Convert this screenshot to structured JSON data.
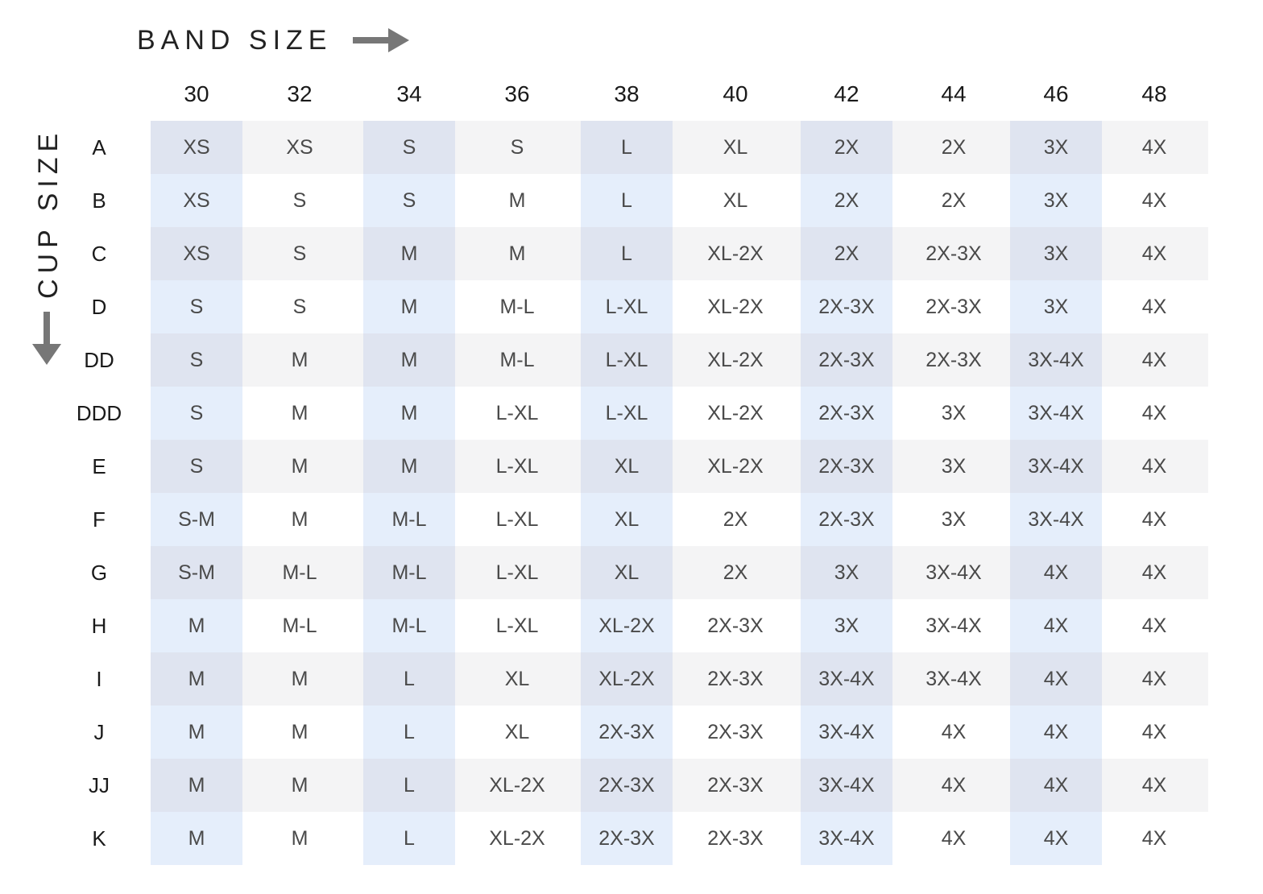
{
  "axis": {
    "band_label": "BAND SIZE",
    "cup_label": "CUP SIZE"
  },
  "colors": {
    "highlight_column_light": "#e8f0fb",
    "highlight_column_dark": "#dde3ee",
    "row_stripe": "#f4f4f5",
    "arrow": "#777777"
  },
  "icons": [
    "arrow-right-icon",
    "arrow-down-icon"
  ],
  "band_sizes": [
    "30",
    "32",
    "34",
    "36",
    "38",
    "40",
    "42",
    "44",
    "46",
    "48"
  ],
  "highlighted_band_columns": [
    0,
    2,
    4,
    6,
    8
  ],
  "cup_sizes": [
    "A",
    "B",
    "C",
    "D",
    "DD",
    "DDD",
    "E",
    "F",
    "G",
    "H",
    "I",
    "J",
    "JJ",
    "K"
  ],
  "rows": [
    [
      "XS",
      "XS",
      "S",
      "S",
      "L",
      "XL",
      "2X",
      "2X",
      "3X",
      "4X"
    ],
    [
      "XS",
      "S",
      "S",
      "M",
      "L",
      "XL",
      "2X",
      "2X",
      "3X",
      "4X"
    ],
    [
      "XS",
      "S",
      "M",
      "M",
      "L",
      "XL-2X",
      "2X",
      "2X-3X",
      "3X",
      "4X"
    ],
    [
      "S",
      "S",
      "M",
      "M-L",
      "L-XL",
      "XL-2X",
      "2X-3X",
      "2X-3X",
      "3X",
      "4X"
    ],
    [
      "S",
      "M",
      "M",
      "M-L",
      "L-XL",
      "XL-2X",
      "2X-3X",
      "2X-3X",
      "3X-4X",
      "4X"
    ],
    [
      "S",
      "M",
      "M",
      "L-XL",
      "L-XL",
      "XL-2X",
      "2X-3X",
      "3X",
      "3X-4X",
      "4X"
    ],
    [
      "S",
      "M",
      "M",
      "L-XL",
      "XL",
      "XL-2X",
      "2X-3X",
      "3X",
      "3X-4X",
      "4X"
    ],
    [
      "S-M",
      "M",
      "M-L",
      "L-XL",
      "XL",
      "2X",
      "2X-3X",
      "3X",
      "3X-4X",
      "4X"
    ],
    [
      "S-M",
      "M-L",
      "M-L",
      "L-XL",
      "XL",
      "2X",
      "3X",
      "3X-4X",
      "4X",
      "4X"
    ],
    [
      "M",
      "M-L",
      "M-L",
      "L-XL",
      "XL-2X",
      "2X-3X",
      "3X",
      "3X-4X",
      "4X",
      "4X"
    ],
    [
      "M",
      "M",
      "L",
      "XL",
      "XL-2X",
      "2X-3X",
      "3X-4X",
      "3X-4X",
      "4X",
      "4X"
    ],
    [
      "M",
      "M",
      "L",
      "XL",
      "2X-3X",
      "2X-3X",
      "3X-4X",
      "4X",
      "4X",
      "4X"
    ],
    [
      "M",
      "M",
      "L",
      "XL-2X",
      "2X-3X",
      "2X-3X",
      "3X-4X",
      "4X",
      "4X",
      "4X"
    ],
    [
      "M",
      "M",
      "L",
      "XL-2X",
      "2X-3X",
      "2X-3X",
      "3X-4X",
      "4X",
      "4X",
      "4X"
    ]
  ]
}
